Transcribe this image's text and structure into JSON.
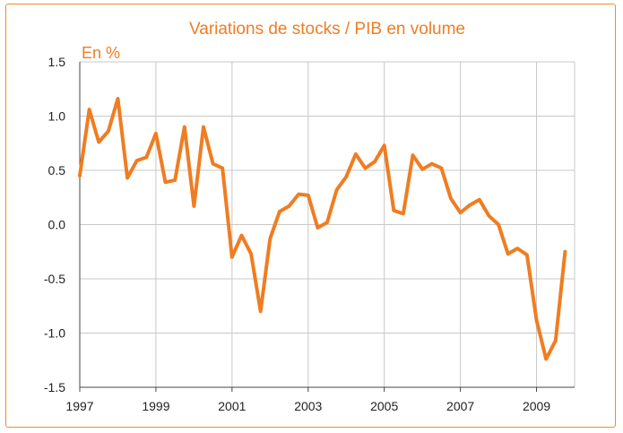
{
  "chart_data": {
    "type": "line",
    "title": "Variations de stocks / PIB en volume",
    "ylabel": "En %",
    "xlabel": "",
    "ylim": [
      -1.5,
      1.5
    ],
    "yticks": [
      "1.5",
      "1.0",
      "0.5",
      "0.0",
      "-0.5",
      "-1.0",
      "-1.5"
    ],
    "xlim": [
      1997,
      2010
    ],
    "xticks": [
      "1997",
      "1999",
      "2001",
      "2003",
      "2005",
      "2007",
      "2009"
    ],
    "grid": true,
    "legend": "none",
    "series": [
      {
        "color": "#ef7d22",
        "x": [
          1997.0,
          1997.25,
          1997.5,
          1997.75,
          1998.0,
          1998.25,
          1998.5,
          1998.75,
          1999.0,
          1999.25,
          1999.5,
          1999.75,
          2000.0,
          2000.25,
          2000.5,
          2000.75,
          2001.0,
          2001.25,
          2001.5,
          2001.75,
          2002.0,
          2002.25,
          2002.5,
          2002.75,
          2003.0,
          2003.25,
          2003.5,
          2003.75,
          2004.0,
          2004.25,
          2004.5,
          2004.75,
          2005.0,
          2005.25,
          2005.5,
          2005.75,
          2006.0,
          2006.25,
          2006.5,
          2006.75,
          2007.0,
          2007.25,
          2007.5,
          2007.75,
          2008.0,
          2008.25,
          2008.5,
          2008.75,
          2009.0,
          2009.25,
          2009.5,
          2009.75
        ],
        "values": [
          0.45,
          1.06,
          0.76,
          0.86,
          1.16,
          0.43,
          0.59,
          0.62,
          0.84,
          0.39,
          0.41,
          0.9,
          0.17,
          0.9,
          0.56,
          0.52,
          -0.3,
          -0.1,
          -0.27,
          -0.8,
          -0.13,
          0.12,
          0.17,
          0.28,
          0.27,
          -0.03,
          0.02,
          0.32,
          0.44,
          0.65,
          0.52,
          0.58,
          0.73,
          0.13,
          0.1,
          0.64,
          0.51,
          0.56,
          0.52,
          0.24,
          0.11,
          0.18,
          0.23,
          0.08,
          0.0,
          -0.27,
          -0.22,
          -0.28,
          -0.88,
          -1.24,
          -1.07,
          -0.25
        ]
      }
    ]
  }
}
